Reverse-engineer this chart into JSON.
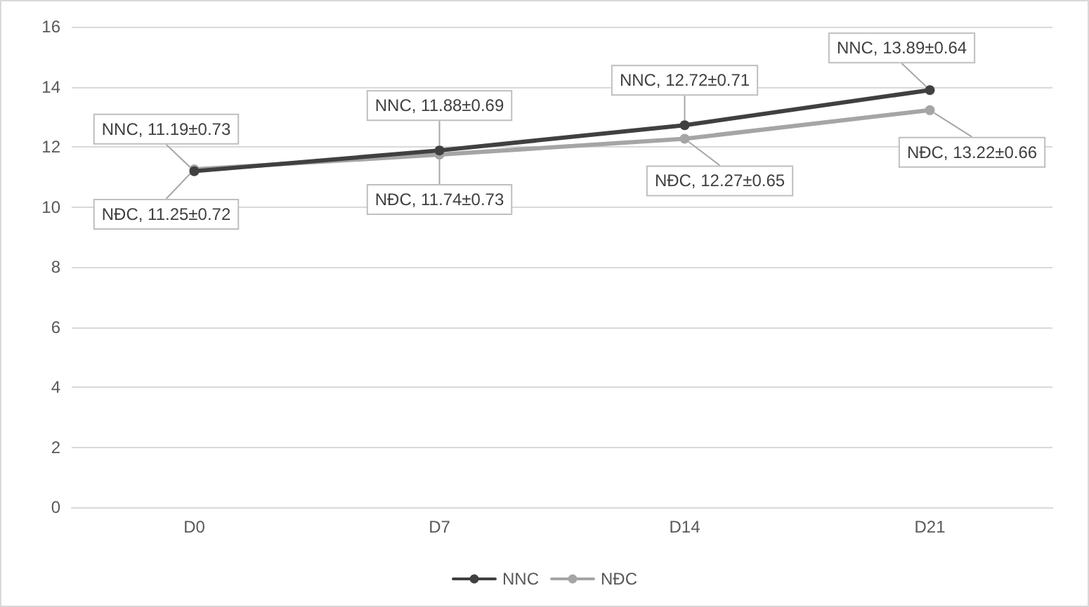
{
  "chart_data": {
    "type": "line",
    "categories": [
      "D0",
      "D7",
      "D14",
      "D21"
    ],
    "series": [
      {
        "name": "NNC",
        "color": "#404040",
        "values": [
          11.19,
          11.88,
          12.72,
          13.89
        ],
        "value_labels": [
          "NNC, 11.19±0.73",
          "NNC, 11.88±0.69",
          "NNC, 12.72±0.71",
          "NNC, 13.89±0.64"
        ]
      },
      {
        "name": "NĐC",
        "color": "#a5a5a5",
        "values": [
          11.25,
          11.74,
          12.27,
          13.22
        ],
        "value_labels": [
          "NĐC, 11.25±0.72",
          "NĐC, 11.74±0.73",
          "NĐC, 12.27±0.65",
          "NĐC, 13.22±0.66"
        ]
      }
    ],
    "ylim": [
      0,
      16
    ],
    "yticks": [
      0,
      2,
      4,
      6,
      8,
      10,
      12,
      14,
      16
    ],
    "grid": "y",
    "legend": "bottom",
    "marker": "circle",
    "line_style": "solid"
  }
}
